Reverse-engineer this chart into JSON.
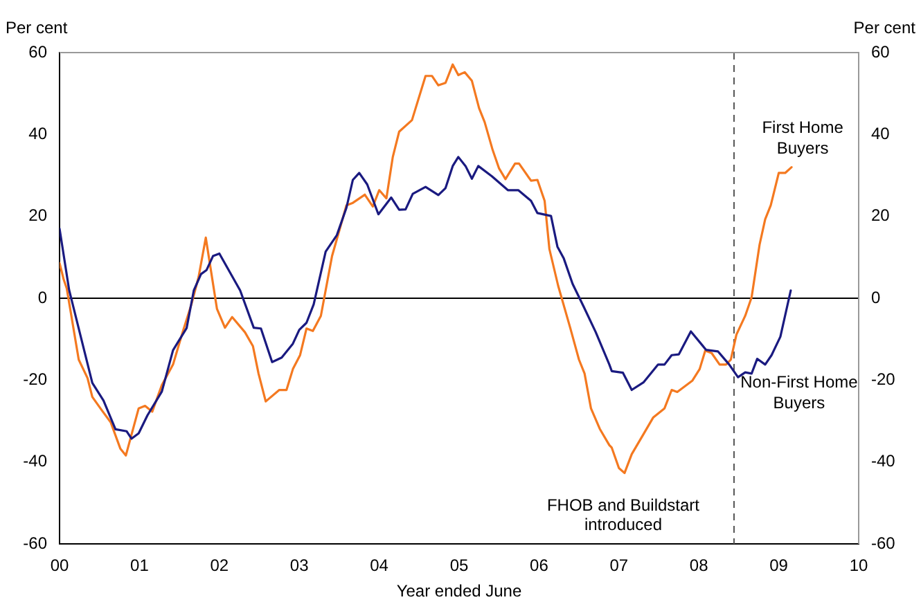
{
  "chart_data": {
    "type": "line",
    "xlabel": "Year ended June",
    "ylabel": "Per cent",
    "y2label": "Per cent",
    "xlim": [
      0,
      10
    ],
    "xticks": [
      {
        "value": 0,
        "label": "00"
      },
      {
        "value": 1,
        "label": "01"
      },
      {
        "value": 2,
        "label": "02"
      },
      {
        "value": 3,
        "label": "03"
      },
      {
        "value": 4,
        "label": "04"
      },
      {
        "value": 5,
        "label": "05"
      },
      {
        "value": 6,
        "label": "06"
      },
      {
        "value": 7,
        "label": "07"
      },
      {
        "value": 8,
        "label": "08"
      },
      {
        "value": 9,
        "label": "09"
      },
      {
        "value": 10,
        "label": "10"
      }
    ],
    "ylim": [
      -60,
      60
    ],
    "yticks": [
      -60,
      -40,
      -20,
      0,
      20,
      40,
      60
    ],
    "y2lim": [
      -60,
      60
    ],
    "y2ticks": [
      -60,
      -40,
      -20,
      0,
      20,
      40,
      60
    ],
    "grid": false,
    "legend": false,
    "marker": "none",
    "line_style": "solid",
    "ref_lines": [
      {
        "axis": "y",
        "value": 0,
        "color": "#000000",
        "line_style": "solid"
      },
      {
        "axis": "x",
        "value": 8.44,
        "label": "FHOB and Buildstart introduced",
        "color": "#555555",
        "line_style": "dashed"
      }
    ],
    "series": [
      {
        "name": "Non-First Home Buyers",
        "color": "#1a1a80",
        "x": [
          0,
          0.12,
          0.41,
          0.55,
          0.7,
          0.84,
          0.9,
          0.99,
          1.1,
          1.28,
          1.42,
          1.59,
          1.68,
          1.77,
          1.84,
          1.92,
          2.0,
          2.26,
          2.43,
          2.52,
          2.66,
          2.78,
          2.92,
          3.0,
          3.09,
          3.18,
          3.33,
          3.47,
          3.59,
          3.67,
          3.75,
          3.85,
          3.99,
          4.15,
          4.25,
          4.33,
          4.42,
          4.58,
          4.74,
          4.83,
          4.92,
          4.99,
          5.08,
          5.16,
          5.24,
          5.41,
          5.61,
          5.74,
          5.9,
          5.98,
          6.15,
          6.23,
          6.31,
          6.42,
          6.56,
          6.71,
          6.88,
          6.91,
          7.05,
          7.16,
          7.31,
          7.49,
          7.57,
          7.66,
          7.75,
          7.9,
          8.09,
          8.24,
          8.38,
          8.49,
          8.58,
          8.66,
          8.73,
          8.83,
          8.91,
          9.02,
          9.15
        ],
        "values": [
          17,
          2,
          -20.7,
          -25,
          -32,
          -32.5,
          -34.3,
          -33,
          -28.6,
          -22.8,
          -12.7,
          -7.3,
          1.9,
          5.9,
          6.9,
          10.3,
          10.9,
          1.9,
          -7.2,
          -7.4,
          -15.6,
          -14.5,
          -11.1,
          -7.7,
          -6,
          -1.5,
          11.4,
          15.4,
          22.1,
          28.9,
          30.6,
          27.8,
          20.5,
          24.6,
          21.6,
          21.7,
          25.5,
          27.2,
          25.2,
          26.9,
          32.3,
          34.5,
          32.3,
          29.2,
          32.3,
          29.8,
          26.4,
          26.4,
          23.8,
          20.8,
          20.1,
          12.6,
          9.7,
          3.5,
          -2.1,
          -8.3,
          -16.2,
          -17.8,
          -18.2,
          -22.4,
          -20.5,
          -16.2,
          -16.2,
          -13.9,
          -13.7,
          -8.1,
          -12.6,
          -13,
          -16.2,
          -19.3,
          -18.1,
          -18.4,
          -14.8,
          -16.2,
          -13.9,
          -9.4,
          1.9
        ]
      },
      {
        "name": "First Home Buyers",
        "color": "#f47920",
        "x": [
          0,
          0.05,
          0.09,
          0.24,
          0.35,
          0.41,
          0.53,
          0.64,
          0.76,
          0.83,
          0.99,
          1.07,
          1.16,
          1.28,
          1.42,
          1.54,
          1.65,
          1.74,
          1.83,
          1.97,
          2.07,
          2.16,
          2.32,
          2.42,
          2.49,
          2.58,
          2.75,
          2.84,
          2.92,
          3.01,
          3.09,
          3.17,
          3.27,
          3.41,
          3.59,
          3.67,
          3.82,
          3.92,
          4.0,
          4.09,
          4.17,
          4.25,
          4.41,
          4.58,
          4.66,
          4.74,
          4.83,
          4.92,
          4.99,
          5.07,
          5.16,
          5.25,
          5.32,
          5.42,
          5.5,
          5.58,
          5.7,
          5.75,
          5.9,
          5.98,
          6.07,
          6.13,
          6.24,
          6.39,
          6.5,
          6.57,
          6.65,
          6.76,
          6.88,
          6.91,
          7.0,
          7.07,
          7.16,
          7.31,
          7.43,
          7.57,
          7.66,
          7.73,
          7.92,
          8.01,
          8.08,
          8.16,
          8.26,
          8.34,
          8.4,
          8.47,
          8.58,
          8.66,
          8.76,
          8.83,
          8.9,
          9.0,
          9.08,
          9.16
        ],
        "values": [
          8.6,
          4.7,
          2.4,
          -15,
          -19.5,
          -24.1,
          -27.4,
          -30.3,
          -36.7,
          -38.4,
          -26.9,
          -26.3,
          -27.7,
          -21.2,
          -16.2,
          -8.3,
          -1.5,
          5.2,
          14.8,
          -2.6,
          -7.2,
          -4.6,
          -8.3,
          -11.7,
          -18.4,
          -25.2,
          -22.4,
          -22.4,
          -17.3,
          -13.9,
          -7.4,
          -8,
          -4.3,
          10.3,
          22.7,
          23.3,
          25.3,
          22.4,
          26.4,
          24.4,
          34.5,
          40.7,
          43.5,
          54.3,
          54.3,
          52,
          52.6,
          57.1,
          54.5,
          55.2,
          53.1,
          46.4,
          43,
          36.2,
          31.7,
          29.1,
          32.9,
          32.9,
          28.7,
          28.9,
          23.8,
          12,
          3,
          -7.2,
          -15,
          -18.4,
          -26.9,
          -31.9,
          -35.9,
          -36.5,
          -41.5,
          -42.7,
          -38.1,
          -33.1,
          -29.1,
          -26.9,
          -22.4,
          -22.9,
          -20.1,
          -17.3,
          -12.8,
          -13.4,
          -16.2,
          -16.2,
          -15,
          -8.9,
          -4.3,
          0.2,
          13.1,
          19.3,
          22.7,
          30.6,
          30.6,
          32
        ]
      }
    ]
  }
}
